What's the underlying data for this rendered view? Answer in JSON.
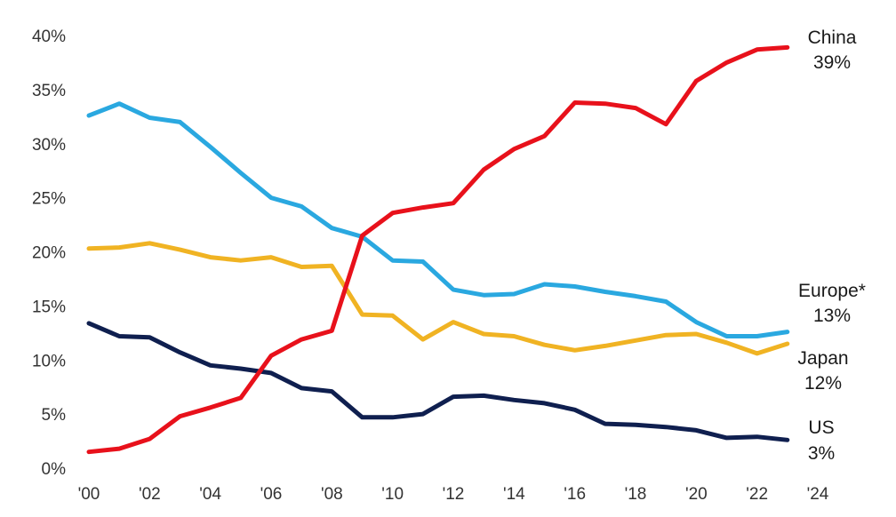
{
  "chart_data": {
    "type": "line",
    "title": "",
    "xlabel": "",
    "ylabel": "",
    "xlim": [
      2000,
      2024
    ],
    "ylim": [
      0,
      40
    ],
    "grid": false,
    "x": [
      2000,
      2001,
      2002,
      2003,
      2004,
      2005,
      2006,
      2007,
      2008,
      2009,
      2010,
      2011,
      2012,
      2013,
      2014,
      2015,
      2016,
      2017,
      2018,
      2019,
      2020,
      2021,
      2022,
      2023
    ],
    "x_ticks": [
      {
        "value": 2000,
        "label": "'00"
      },
      {
        "value": 2002,
        "label": "'02"
      },
      {
        "value": 2004,
        "label": "'04"
      },
      {
        "value": 2006,
        "label": "'06"
      },
      {
        "value": 2008,
        "label": "'08"
      },
      {
        "value": 2010,
        "label": "'10"
      },
      {
        "value": 2012,
        "label": "'12"
      },
      {
        "value": 2014,
        "label": "'14"
      },
      {
        "value": 2016,
        "label": "'16"
      },
      {
        "value": 2018,
        "label": "'18"
      },
      {
        "value": 2020,
        "label": "'20"
      },
      {
        "value": 2022,
        "label": "'22"
      },
      {
        "value": 2024,
        "label": "'24"
      }
    ],
    "y_ticks": [
      {
        "value": 0,
        "label": "0%"
      },
      {
        "value": 5,
        "label": "5%"
      },
      {
        "value": 10,
        "label": "10%"
      },
      {
        "value": 15,
        "label": "15%"
      },
      {
        "value": 20,
        "label": "20%"
      },
      {
        "value": 25,
        "label": "25%"
      },
      {
        "value": 30,
        "label": "30%"
      },
      {
        "value": 35,
        "label": "35%"
      },
      {
        "value": 40,
        "label": "40%"
      }
    ],
    "series": [
      {
        "id": "europe",
        "name": "Europe*",
        "end_label": "13%",
        "color": "#2aa8e0",
        "values": [
          32.6,
          33.7,
          32.4,
          32.0,
          29.7,
          27.3,
          25.0,
          24.2,
          22.2,
          21.4,
          19.2,
          19.1,
          16.5,
          16.0,
          16.1,
          17.0,
          16.8,
          16.3,
          15.9,
          15.4,
          13.5,
          12.2,
          12.2,
          12.6
        ]
      },
      {
        "id": "japan",
        "name": "Japan",
        "end_label": "12%",
        "color": "#f0b323",
        "values": [
          20.3,
          20.4,
          20.8,
          20.2,
          19.5,
          19.2,
          19.5,
          18.6,
          18.7,
          14.2,
          14.1,
          11.9,
          13.5,
          12.4,
          12.2,
          11.4,
          10.9,
          11.3,
          11.8,
          12.3,
          12.4,
          11.6,
          10.6,
          11.5
        ]
      },
      {
        "id": "us",
        "name": "US",
        "end_label": "3%",
        "color": "#0f1f4f",
        "values": [
          13.4,
          12.2,
          12.1,
          10.7,
          9.5,
          9.2,
          8.8,
          7.4,
          7.1,
          4.7,
          4.7,
          5.0,
          6.6,
          6.7,
          6.3,
          6.0,
          5.4,
          4.1,
          4.0,
          3.8,
          3.5,
          2.8,
          2.9,
          2.6
        ]
      },
      {
        "id": "china",
        "name": "China",
        "end_label": "39%",
        "color": "#e8111b",
        "values": [
          1.5,
          1.8,
          2.7,
          4.8,
          5.6,
          6.5,
          10.4,
          11.9,
          12.7,
          21.5,
          23.6,
          24.1,
          24.5,
          27.6,
          29.5,
          30.7,
          33.8,
          33.7,
          33.3,
          31.8,
          35.8,
          37.5,
          38.7,
          38.9
        ]
      }
    ],
    "end_labels": [
      {
        "series": "china",
        "name": "China",
        "value": "39%"
      },
      {
        "series": "europe",
        "name": "Europe*",
        "value": "13%"
      },
      {
        "series": "japan",
        "name": "Japan",
        "value": "12%"
      },
      {
        "series": "us",
        "name": "US",
        "value": "3%"
      }
    ]
  }
}
